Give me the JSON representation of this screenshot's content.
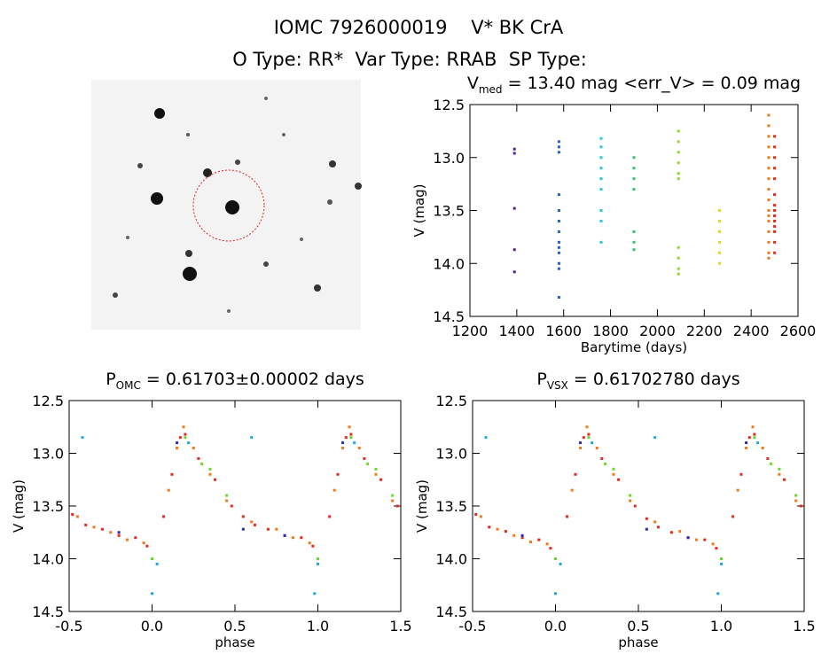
{
  "header": {
    "title": "IOMC 7926000019    V* BK CrA",
    "subtitle": "O Type: RR*  Var Type: RRAB  SP Type:"
  },
  "chart_data": [
    {
      "type": "scatter",
      "title": {
        "main": "V",
        "subscript": "med",
        "rest": " = 13.40 mag <err_V> = 0.09 mag"
      },
      "x_label": "Barytime (days)",
      "y_label": "V (mag)",
      "xlim": [
        1200,
        2600
      ],
      "xticks": [
        1200,
        1400,
        1600,
        1800,
        2000,
        2200,
        2400,
        2600
      ],
      "ylim": [
        14.5,
        12.5
      ],
      "yticks": [
        12.5,
        {
          "value": 13,
          "label": "13.0"
        },
        13.5,
        {
          "value": 14,
          "label": "14.0"
        },
        14.5
      ],
      "series": [
        {
          "color": "#5a1e8c",
          "x": [
            1390,
            1390,
            1390,
            1390,
            1390
          ],
          "values": [
            12.92,
            12.96,
            13.48,
            13.87,
            14.08
          ]
        },
        {
          "color": "#1f5fd0",
          "x": [
            1580,
            1580,
            1580,
            1580,
            1580,
            1580,
            1580,
            1580,
            1580,
            1580,
            1580,
            1580,
            1580
          ],
          "values": [
            12.85,
            12.9,
            12.95,
            13.35,
            13.5,
            13.6,
            13.7,
            13.8,
            13.85,
            13.9,
            14.0,
            14.05,
            14.32
          ]
        },
        {
          "color": "#22c8d8",
          "x": [
            1760,
            1760,
            1760,
            1760,
            1760,
            1760,
            1760,
            1760,
            1760
          ],
          "values": [
            12.82,
            12.9,
            13.0,
            13.1,
            13.2,
            13.3,
            13.5,
            13.6,
            13.8
          ]
        },
        {
          "color": "#2ec86a",
          "x": [
            1900,
            1900,
            1900,
            1900,
            1900,
            1900,
            1900
          ],
          "values": [
            13.0,
            13.1,
            13.2,
            13.3,
            13.7,
            13.8,
            13.87
          ]
        },
        {
          "color": "#9ad62a",
          "x": [
            2090,
            2090,
            2090,
            2090,
            2090,
            2090,
            2090,
            2090,
            2090,
            2090
          ],
          "values": [
            12.75,
            12.85,
            12.95,
            13.05,
            13.15,
            13.2,
            13.85,
            13.95,
            14.05,
            14.1
          ]
        },
        {
          "color": "#f0d020",
          "x": [
            2265,
            2265,
            2265,
            2265,
            2265,
            2265
          ],
          "values": [
            13.5,
            13.6,
            13.7,
            13.8,
            13.9,
            14.0
          ]
        },
        {
          "color": "#f07a1a",
          "x": [
            2475,
            2475,
            2475,
            2475,
            2475,
            2475,
            2475,
            2475,
            2475,
            2475,
            2475,
            2475,
            2475,
            2475,
            2475,
            2475
          ],
          "values": [
            12.6,
            12.7,
            12.8,
            12.9,
            13.0,
            13.1,
            13.2,
            13.3,
            13.4,
            13.5,
            13.55,
            13.6,
            13.7,
            13.8,
            13.9,
            13.95
          ]
        },
        {
          "color": "#e8281c",
          "x": [
            2500,
            2500,
            2500,
            2500,
            2500,
            2500,
            2500,
            2500,
            2500,
            2500,
            2500,
            2500,
            2500,
            2500
          ],
          "values": [
            12.8,
            12.9,
            13.0,
            13.1,
            13.2,
            13.35,
            13.45,
            13.5,
            13.55,
            13.6,
            13.65,
            13.7,
            13.8,
            13.9
          ]
        }
      ]
    },
    {
      "type": "scatter",
      "title": {
        "main": "P",
        "subscript": "OMC",
        "rest": " = 0.61703±0.00002 days"
      },
      "x_label": "phase",
      "y_label": "V (mag)",
      "xlim": [
        -0.5,
        1.5
      ],
      "xticks": [
        -0.5,
        {
          "value": 0,
          "label": "0.0"
        },
        0.5,
        {
          "value": 1,
          "label": "1.0"
        },
        1.5
      ],
      "ylim": [
        14.5,
        12.5
      ],
      "yticks": [
        12.5,
        {
          "value": 13,
          "label": "13.0"
        },
        13.5,
        {
          "value": 14,
          "label": "14.0"
        },
        14.5
      ],
      "series": [
        {
          "color": "#e8281c",
          "x": [
            -0.48,
            -0.4,
            -0.3,
            -0.2,
            -0.1,
            -0.03,
            0.07,
            0.12,
            0.17,
            0.2,
            0.28,
            0.38,
            0.48,
            0.55,
            0.62,
            0.7,
            0.8,
            0.9,
            0.97,
            1.07,
            1.12,
            1.17,
            1.2,
            1.28,
            1.38,
            1.48
          ],
          "values": [
            13.58,
            13.68,
            13.72,
            13.78,
            13.8,
            13.88,
            13.6,
            13.2,
            12.85,
            12.82,
            13.05,
            13.25,
            13.5,
            13.6,
            13.68,
            13.72,
            13.78,
            13.8,
            13.88,
            13.6,
            13.2,
            12.85,
            12.82,
            13.05,
            13.25,
            13.5
          ]
        },
        {
          "color": "#f07a1a",
          "x": [
            -0.45,
            -0.35,
            -0.25,
            -0.15,
            -0.05,
            0.1,
            0.15,
            0.19,
            0.25,
            0.35,
            0.45,
            0.6,
            0.75,
            0.85,
            0.95,
            1.1,
            1.15,
            1.19,
            1.25,
            1.35,
            1.45
          ],
          "values": [
            13.6,
            13.7,
            13.75,
            13.82,
            13.85,
            13.35,
            12.95,
            12.75,
            12.95,
            13.2,
            13.45,
            13.65,
            13.72,
            13.8,
            13.85,
            13.35,
            12.95,
            12.75,
            12.95,
            13.2,
            13.45
          ]
        },
        {
          "color": "#6cd62a",
          "x": [
            0.0,
            0.2,
            0.3,
            0.35,
            0.45,
            1.0,
            1.2,
            1.3,
            1.35,
            1.45
          ],
          "values": [
            14.0,
            12.85,
            13.1,
            13.15,
            13.4,
            14.0,
            12.85,
            13.1,
            13.15,
            13.4
          ]
        },
        {
          "color": "#1fa8e8",
          "x": [
            -0.42,
            0.0,
            0.03,
            0.22,
            0.6,
            0.98,
            1.0,
            1.22
          ],
          "values": [
            12.85,
            14.33,
            14.05,
            12.9,
            12.85,
            14.33,
            14.05,
            12.9
          ]
        },
        {
          "color": "#2a2ab8",
          "x": [
            -0.2,
            0.15,
            0.55,
            0.8,
            1.15
          ],
          "values": [
            13.75,
            12.9,
            13.72,
            13.78,
            12.9
          ]
        }
      ]
    },
    {
      "type": "scatter",
      "title": {
        "main": "P",
        "subscript": "VSX",
        "rest": " = 0.61702780 days"
      },
      "x_label": "phase",
      "y_label": "V (mag)",
      "xlim": [
        -0.5,
        1.5
      ],
      "xticks": [
        -0.5,
        {
          "value": 0,
          "label": "0.0"
        },
        0.5,
        {
          "value": 1,
          "label": "1.0"
        },
        1.5
      ],
      "ylim": [
        14.5,
        12.5
      ],
      "yticks": [
        12.5,
        {
          "value": 13,
          "label": "13.0"
        },
        13.5,
        {
          "value": 14,
          "label": "14.0"
        },
        14.5
      ],
      "series": [
        {
          "color": "#e8281c",
          "x": [
            -0.48,
            -0.4,
            -0.3,
            -0.2,
            -0.1,
            -0.03,
            0.07,
            0.12,
            0.17,
            0.2,
            0.28,
            0.38,
            0.48,
            0.55,
            0.62,
            0.7,
            0.8,
            0.9,
            0.97,
            1.07,
            1.12,
            1.17,
            1.2,
            1.28,
            1.38,
            1.48
          ],
          "values": [
            13.58,
            13.7,
            13.74,
            13.8,
            13.82,
            13.9,
            13.6,
            13.2,
            12.85,
            12.82,
            13.05,
            13.25,
            13.5,
            13.62,
            13.7,
            13.75,
            13.8,
            13.82,
            13.9,
            13.6,
            13.2,
            12.85,
            12.82,
            13.05,
            13.25,
            13.5
          ]
        },
        {
          "color": "#f07a1a",
          "x": [
            -0.45,
            -0.35,
            -0.25,
            -0.15,
            -0.05,
            0.1,
            0.15,
            0.19,
            0.25,
            0.35,
            0.45,
            0.6,
            0.75,
            0.85,
            0.95,
            1.1,
            1.15,
            1.19,
            1.25,
            1.35,
            1.45
          ],
          "values": [
            13.6,
            13.72,
            13.78,
            13.84,
            13.86,
            13.35,
            12.95,
            12.75,
            12.95,
            13.2,
            13.45,
            13.65,
            13.74,
            13.82,
            13.86,
            13.35,
            12.95,
            12.75,
            12.95,
            13.2,
            13.45
          ]
        },
        {
          "color": "#6cd62a",
          "x": [
            0.0,
            0.2,
            0.3,
            0.35,
            0.45,
            1.0,
            1.2,
            1.3,
            1.35,
            1.45
          ],
          "values": [
            14.0,
            12.85,
            13.1,
            13.15,
            13.4,
            14.0,
            12.85,
            13.1,
            13.15,
            13.4
          ]
        },
        {
          "color": "#1fa8e8",
          "x": [
            -0.42,
            0.0,
            0.03,
            0.22,
            0.6,
            0.98,
            1.0,
            1.22
          ],
          "values": [
            12.85,
            14.33,
            14.05,
            12.9,
            12.85,
            14.33,
            14.05,
            12.9
          ]
        },
        {
          "color": "#2a2ab8",
          "x": [
            -0.2,
            0.15,
            0.55,
            0.8,
            1.15
          ],
          "values": [
            13.78,
            12.9,
            13.72,
            13.8,
            12.9
          ]
        }
      ]
    }
  ]
}
